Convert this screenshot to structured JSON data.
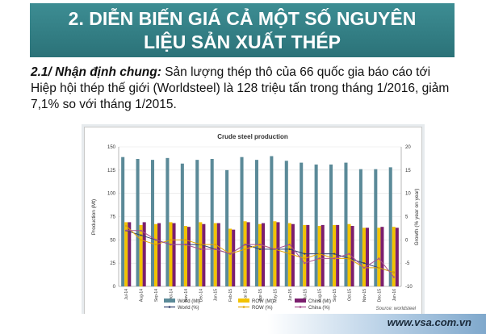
{
  "slide": {
    "title_line1": "2. DIỄN BIẾN GIÁ CẢ MỘT SỐ NGUYÊN",
    "title_line2": "LIỆU SẢN XUẤT THÉP",
    "lead": "2.1/ Nhận định chung:",
    "body": " Sản lượng thép thô của 66 quốc gia báo cáo tới Hiệp hội thép thế giới (Worldsteel) là 128 triệu tấn trong tháng 1/2016, giảm 7,1% so với tháng 1/2015.",
    "footer_url": "www.vsa.com.vn"
  },
  "chart_data": {
    "type": "bar",
    "title": "Crude steel production",
    "ylabel": "Production (Mt)",
    "y2label": "Growth (% year on year)",
    "source": "Source: worldsteel",
    "ylim": [
      0,
      150
    ],
    "y2lim": [
      -10,
      20
    ],
    "yticks": [
      "0",
      "25",
      "50",
      "75",
      "100",
      "125",
      "150"
    ],
    "y2ticks": [
      "-10",
      "-5",
      "0",
      "5",
      "10",
      "15",
      "20"
    ],
    "categories": [
      "Jul-14",
      "Aug-14",
      "Sep-14",
      "Oct-14",
      "Nov-14",
      "Dec-14",
      "Jan-15",
      "Feb-15",
      "Mar-15",
      "Apr-15",
      "May-15",
      "Jun-15",
      "Jul-15",
      "Aug-15",
      "Sep-15",
      "Oct-15",
      "Nov-15",
      "Dec-15",
      "Jan-16"
    ],
    "bar_series": [
      {
        "name": "World (Mt)",
        "color": "#5b8a98",
        "values": [
          139,
          137,
          136,
          138,
          132,
          136,
          137,
          125,
          139,
          136,
          140,
          135,
          133,
          131,
          131,
          133,
          126,
          126,
          128
        ]
      },
      {
        "name": "ROW (Mt)",
        "color": "#f2c200",
        "values": [
          69,
          66,
          67,
          69,
          65,
          69,
          68,
          62,
          70,
          67,
          70,
          68,
          66,
          65,
          66,
          67,
          63,
          63,
          64
        ]
      },
      {
        "name": "China (Mt)",
        "color": "#7b1f6e",
        "values": [
          69,
          69,
          68,
          68,
          64,
          67,
          68,
          61,
          69,
          68,
          69,
          67,
          66,
          66,
          66,
          65,
          63,
          64,
          63
        ]
      }
    ],
    "line_series": [
      {
        "name": "World (%)",
        "color": "#2f3f6e",
        "values": [
          2,
          1,
          0,
          -1,
          -1,
          -1,
          -2,
          -3,
          -1,
          -2,
          -2,
          -2,
          -3,
          -3,
          -3,
          -4,
          -5,
          -6,
          -7
        ]
      },
      {
        "name": "ROW (%)",
        "color": "#e3a500",
        "values": [
          3,
          0,
          -1,
          0,
          0,
          -1,
          -1,
          -3,
          -2,
          -1,
          -2,
          -3,
          -4,
          -3,
          -4,
          -4,
          -6,
          -6,
          -7
        ]
      },
      {
        "name": "China (%)",
        "color": "#a8508f",
        "values": [
          2,
          2,
          0,
          -1,
          -1,
          -2,
          -2,
          -3,
          -1,
          -1,
          -2,
          -1,
          -5,
          -4,
          -4,
          -3,
          -6,
          -4,
          -8
        ]
      }
    ],
    "legend_position": "bottom"
  }
}
